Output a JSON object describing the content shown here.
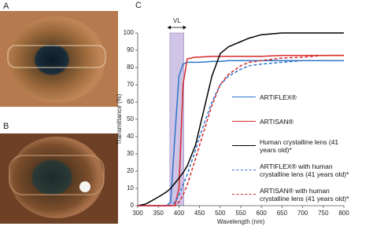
{
  "panel_labels": [
    "A",
    "B",
    "C"
  ],
  "chart_data": {
    "type": "line",
    "x_label": "Wavelength (nm)",
    "y_label": "Transmittance (%)",
    "x": [
      300,
      320,
      350,
      370,
      380,
      390,
      400,
      410,
      420,
      440,
      450,
      480,
      500,
      520,
      550,
      560,
      570,
      600,
      650,
      700,
      750,
      800
    ],
    "series": [
      {
        "name": "ARTIFLEX®",
        "color": "#2e75c8",
        "linestyle": "solid",
        "values": [
          0,
          0,
          0,
          0,
          2,
          40,
          75,
          82,
          83,
          83,
          83,
          83.5,
          83.5,
          84,
          84,
          84,
          84,
          84,
          84,
          84,
          84,
          84
        ]
      },
      {
        "name": "ARTISAN®",
        "color": "#d6282d",
        "linestyle": "solid",
        "values": [
          0,
          0,
          0,
          0,
          0,
          0,
          10,
          70,
          85,
          86,
          86,
          86.5,
          86.5,
          86.5,
          86.5,
          86.5,
          86.5,
          86.5,
          87,
          87,
          87,
          87
        ]
      },
      {
        "name": "Human crystalline lens (41 years old)*",
        "color": "#000000",
        "linestyle": "solid",
        "values": [
          0,
          1,
          5,
          8,
          10,
          13,
          16,
          19,
          23,
          35,
          45,
          75,
          88,
          92,
          95,
          96,
          97,
          99,
          100,
          100,
          100,
          100
        ]
      },
      {
        "name": "ARTIFLEX® with human crystalline lens (41 years old)*",
        "color": "#2e75c8",
        "linestyle": "dashed",
        "values": [
          0,
          0,
          0,
          0,
          0,
          2,
          6,
          12,
          18,
          32,
          40,
          60,
          70,
          75,
          79,
          80,
          81,
          82,
          83,
          84,
          84,
          84
        ]
      },
      {
        "name": "ARTISAN® with human crystalline lens (41 years old)*",
        "color": "#d6282d",
        "linestyle": "dashed",
        "values": [
          0,
          0,
          0,
          0,
          0,
          0,
          2,
          6,
          12,
          27,
          35,
          58,
          70,
          76,
          81,
          82,
          83,
          84,
          85.5,
          86,
          87,
          87
        ]
      }
    ],
    "shaded_band": {
      "label": "VL",
      "xlim": [
        378,
        412
      ],
      "color": "#cfc3e6"
    },
    "xlim": [
      300,
      800
    ],
    "xticks": [
      300,
      350,
      400,
      450,
      500,
      550,
      600,
      650,
      700,
      750,
      800
    ],
    "ylim": [
      0,
      100
    ],
    "yticks": [
      0,
      10,
      20,
      30,
      40,
      50,
      60,
      70,
      80,
      90,
      100
    ]
  }
}
